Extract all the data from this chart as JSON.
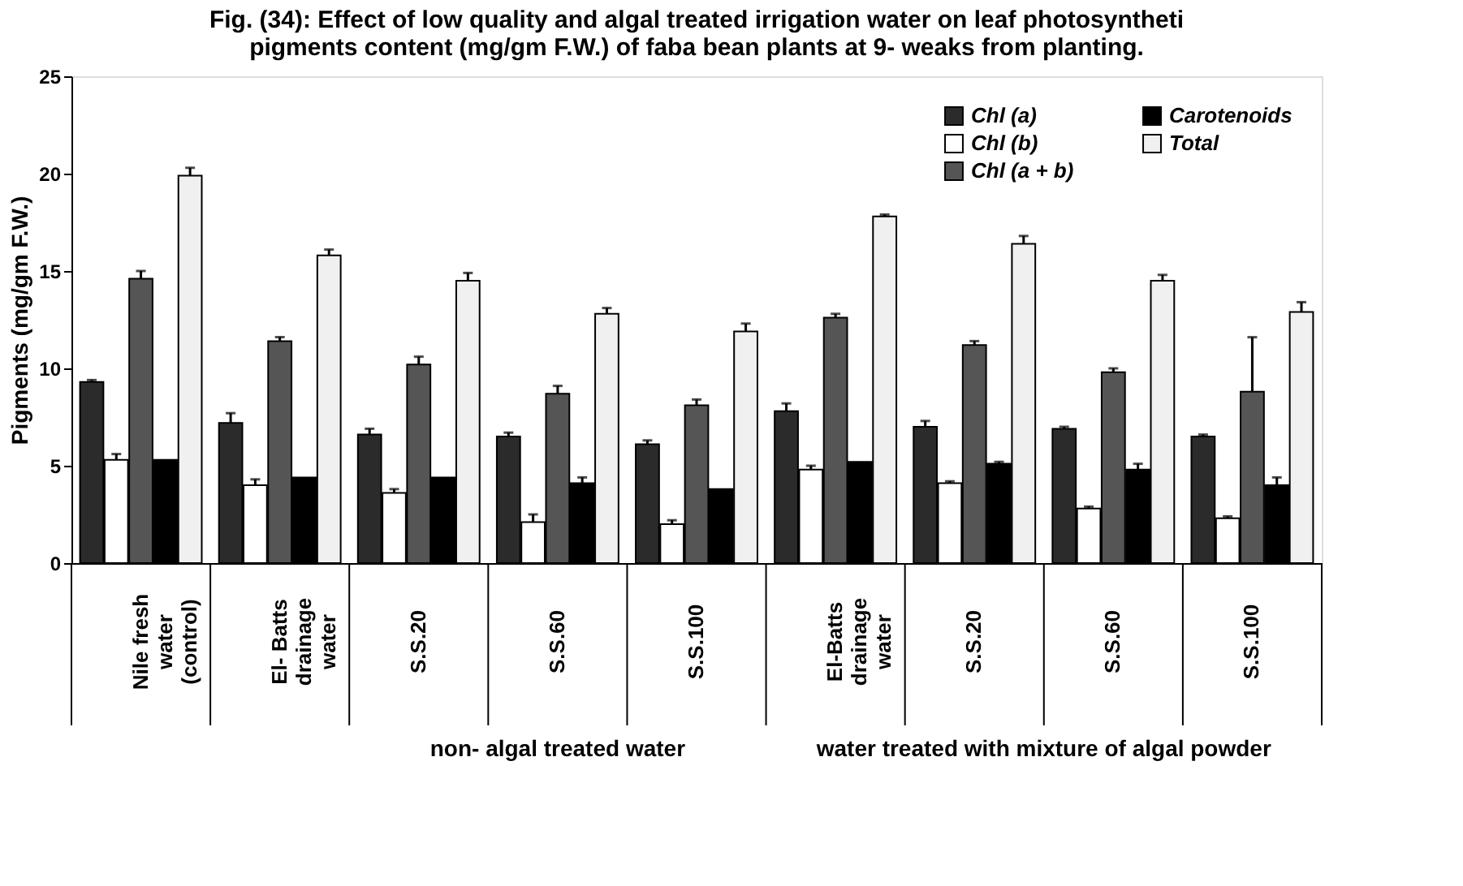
{
  "chart_data": {
    "type": "bar",
    "title": [
      "Fig. (34): Effect of low quality and algal treated irrigation water on leaf photosyntheti",
      "pigments content (mg/gm F.W.) of faba bean plants at 9- weaks from planting."
    ],
    "ylabel": "Pigments (mg/gm F.W.)",
    "categories": [
      "Nile fresh water (control)",
      "El- Batts drainage water",
      "S.S.20",
      "S.S.60",
      "S.S.100",
      "El-Batts drainage water",
      "S.S.20",
      "S.S.60",
      "S.S.100"
    ],
    "annotations": [
      "non- algal treated water",
      "water treated with mixture of algal powder"
    ],
    "series": [
      {
        "name": "Chl (a)",
        "color": "#2b2b2b",
        "values": [
          9.3,
          7.2,
          6.6,
          6.5,
          6.1,
          7.8,
          7.0,
          6.9,
          6.5
        ],
        "errors": [
          0.1,
          0.5,
          0.3,
          0.2,
          0.2,
          0.4,
          0.3,
          0.1,
          0.1
        ]
      },
      {
        "name": "Chl (b)",
        "color": "#ffffff",
        "values": [
          5.3,
          4.0,
          3.6,
          2.1,
          2.0,
          4.8,
          4.1,
          2.8,
          2.3
        ],
        "errors": [
          0.3,
          0.3,
          0.2,
          0.4,
          0.2,
          0.2,
          0.1,
          0.1,
          0.1
        ]
      },
      {
        "name": "Chl (a + b)",
        "color": "#555555",
        "values": [
          14.6,
          11.4,
          10.2,
          8.7,
          8.1,
          12.6,
          11.2,
          9.8,
          8.8
        ],
        "errors": [
          0.4,
          0.2,
          0.4,
          0.4,
          0.3,
          0.2,
          0.2,
          0.2,
          2.8
        ]
      },
      {
        "name": "Carotenoids",
        "color": "#000000",
        "values": [
          5.3,
          4.4,
          4.4,
          4.1,
          3.8,
          5.2,
          5.1,
          4.8,
          4.0
        ],
        "errors": [
          null,
          null,
          null,
          0.3,
          null,
          null,
          0.1,
          0.3,
          0.4
        ]
      },
      {
        "name": "Total",
        "color": "#f0f0f0",
        "values": [
          19.9,
          15.8,
          14.5,
          12.8,
          11.9,
          17.8,
          16.4,
          14.5,
          12.9
        ],
        "errors": [
          0.4,
          0.3,
          0.4,
          0.3,
          0.4,
          0.1,
          0.4,
          0.3,
          0.5
        ]
      }
    ],
    "ylim": [
      0,
      25
    ],
    "yticks": [
      0,
      5,
      10,
      15,
      20,
      25
    ],
    "legend": "top right",
    "grid": false
  }
}
